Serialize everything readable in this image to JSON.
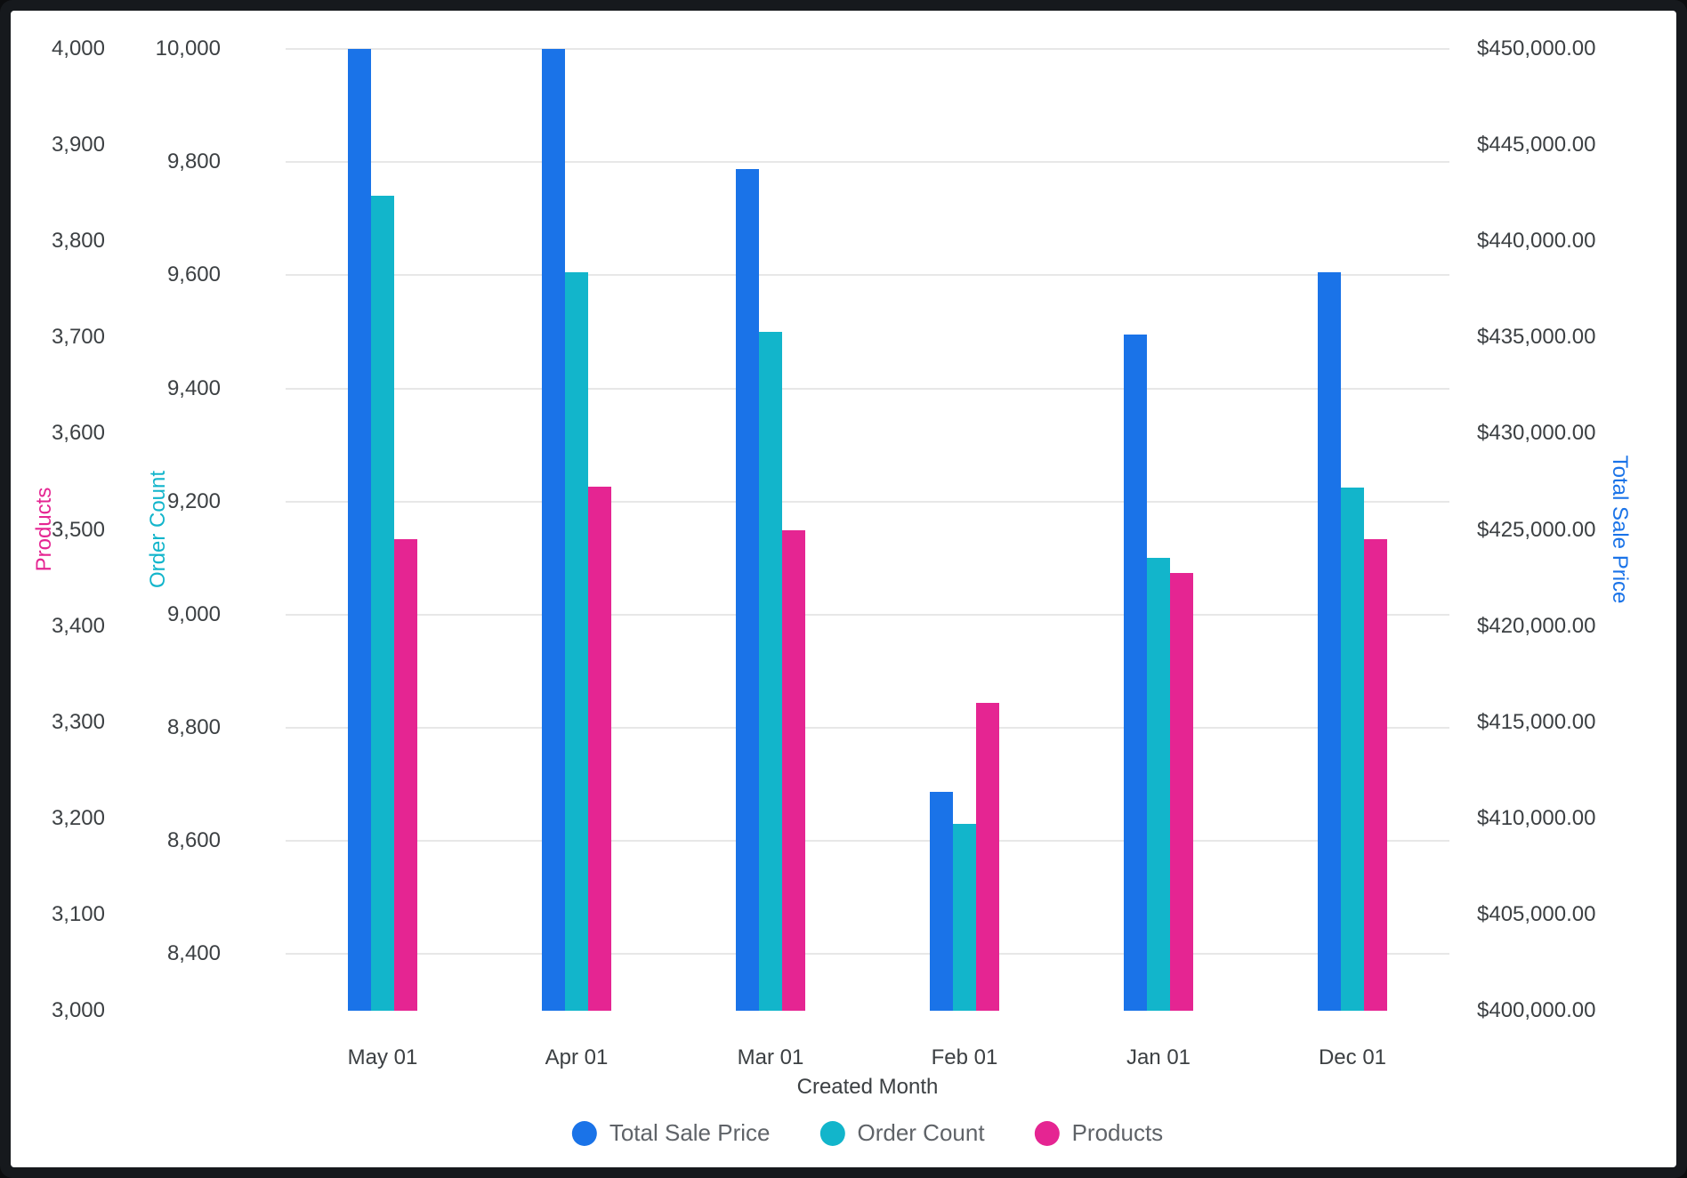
{
  "window": {
    "frame_color": "#16191d",
    "background": "#ffffff"
  },
  "chart_data": {
    "type": "bar",
    "title": "",
    "categories": [
      "May 01",
      "Apr 01",
      "Mar 01",
      "Feb 01",
      "Jan 01",
      "Dec 01"
    ],
    "x_axis": {
      "title": "Created Month"
    },
    "grid": "on",
    "grid_color": "#e7e7e7",
    "tick_color": "#3c4043",
    "axes": {
      "products": {
        "title": "Products",
        "color": "#E52592",
        "side": "left",
        "min": 3000,
        "max": 4000,
        "ticks": [
          {
            "v": 4000,
            "label": "4,000"
          },
          {
            "v": 3900,
            "label": "3,900"
          },
          {
            "v": 3800,
            "label": "3,800"
          },
          {
            "v": 3700,
            "label": "3,700"
          },
          {
            "v": 3600,
            "label": "3,600"
          },
          {
            "v": 3500,
            "label": "3,500"
          },
          {
            "v": 3400,
            "label": "3,400"
          },
          {
            "v": 3300,
            "label": "3,300"
          },
          {
            "v": 3200,
            "label": "3,200"
          },
          {
            "v": 3100,
            "label": "3,100"
          },
          {
            "v": 3000,
            "label": "3,000"
          }
        ]
      },
      "order": {
        "title": "Order Count",
        "color": "#12B5CB",
        "side": "left",
        "min": 8300,
        "max": 10000,
        "gridlines": true,
        "ticks": [
          {
            "v": 10000,
            "label": "10,000"
          },
          {
            "v": 9800,
            "label": "9,800"
          },
          {
            "v": 9600,
            "label": "9,600"
          },
          {
            "v": 9400,
            "label": "9,400"
          },
          {
            "v": 9200,
            "label": "9,200"
          },
          {
            "v": 9000,
            "label": "9,000"
          },
          {
            "v": 8800,
            "label": "8,800"
          },
          {
            "v": 8600,
            "label": "8,600"
          },
          {
            "v": 8400,
            "label": "8,400"
          }
        ]
      },
      "price": {
        "title": "Total Sale Price",
        "color": "#1A73E8",
        "side": "right",
        "min": 400000,
        "max": 450000,
        "ticks": [
          {
            "v": 450000,
            "label": "$450,000.00"
          },
          {
            "v": 445000,
            "label": "$445,000.00"
          },
          {
            "v": 440000,
            "label": "$440,000.00"
          },
          {
            "v": 435000,
            "label": "$435,000.00"
          },
          {
            "v": 430000,
            "label": "$430,000.00"
          },
          {
            "v": 425000,
            "label": "$425,000.00"
          },
          {
            "v": 420000,
            "label": "$420,000.00"
          },
          {
            "v": 415000,
            "label": "$415,000.00"
          },
          {
            "v": 410000,
            "label": "$410,000.00"
          },
          {
            "v": 405000,
            "label": "$405,000.00"
          },
          {
            "v": 400000,
            "label": "$400,000.00"
          }
        ]
      }
    },
    "series": [
      {
        "name": "Total Sale Price",
        "color": "#1A73E8",
        "axis": "price",
        "values": [
          450000,
          450000,
          443750,
          411400,
          435150,
          438400
        ]
      },
      {
        "name": "Order Count",
        "color": "#12B5CB",
        "axis": "order",
        "values": [
          9740,
          9605,
          9500,
          8630,
          9100,
          9225
        ]
      },
      {
        "name": "Products",
        "color": "#E52592",
        "axis": "products",
        "values": [
          3490,
          3545,
          3500,
          3320,
          3455,
          3490
        ]
      }
    ],
    "legend": {
      "position": "bottom",
      "items": [
        "Total Sale Price",
        "Order Count",
        "Products"
      ],
      "text_color": "#5f6368"
    }
  }
}
